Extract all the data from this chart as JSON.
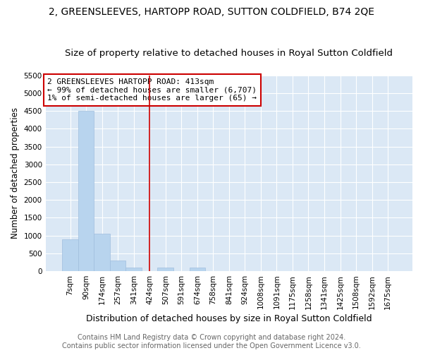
{
  "title": "2, GREENSLEEVES, HARTOPP ROAD, SUTTON COLDFIELD, B74 2QE",
  "subtitle": "Size of property relative to detached houses in Royal Sutton Coldfield",
  "xlabel": "Distribution of detached houses by size in Royal Sutton Coldfield",
  "ylabel": "Number of detached properties",
  "footer1": "Contains HM Land Registry data © Crown copyright and database right 2024.",
  "footer2": "Contains public sector information licensed under the Open Government Licence v3.0.",
  "annotation_line1": "2 GREENSLEEVES HARTOPP ROAD: 413sqm",
  "annotation_line2": "← 99% of detached houses are smaller (6,707)",
  "annotation_line3": "1% of semi-detached houses are larger (65) →",
  "categories": [
    "7sqm",
    "90sqm",
    "174sqm",
    "257sqm",
    "341sqm",
    "424sqm",
    "507sqm",
    "591sqm",
    "674sqm",
    "758sqm",
    "841sqm",
    "924sqm",
    "1008sqm",
    "1091sqm",
    "1175sqm",
    "1258sqm",
    "1341sqm",
    "1425sqm",
    "1508sqm",
    "1592sqm",
    "1675sqm"
  ],
  "values": [
    900,
    4500,
    1050,
    290,
    100,
    0,
    100,
    0,
    100,
    0,
    0,
    0,
    0,
    0,
    0,
    0,
    0,
    0,
    0,
    0,
    0
  ],
  "bar_color": "#b8d4ee",
  "bar_edge_color": "#a0bedd",
  "vline_color": "#cc0000",
  "annotation_box_color": "#cc0000",
  "plot_bg_color": "#dbe8f5",
  "ylim": [
    0,
    5500
  ],
  "yticks": [
    0,
    500,
    1000,
    1500,
    2000,
    2500,
    3000,
    3500,
    4000,
    4500,
    5000,
    5500
  ],
  "vline_index": 5,
  "title_fontsize": 10,
  "subtitle_fontsize": 9.5,
  "xlabel_fontsize": 9,
  "ylabel_fontsize": 8.5,
  "tick_fontsize": 7.5,
  "footer_fontsize": 7,
  "annotation_fontsize": 8
}
